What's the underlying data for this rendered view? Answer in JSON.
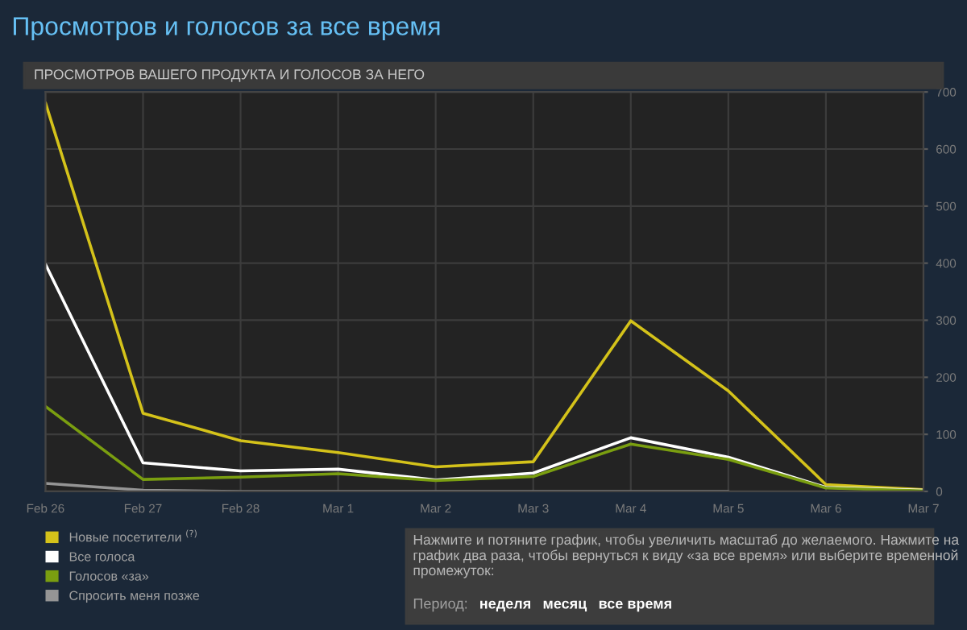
{
  "chart_data": {
    "type": "line",
    "title": "Просмотров и голосов за все время",
    "subtitle": "ПРОСМОТРОВ ВАШЕГО ПРОДУКТА И ГОЛОСОВ ЗА НЕГО",
    "categories": [
      "Feb 26",
      "Feb 27",
      "Feb 28",
      "Mar 1",
      "Mar 2",
      "Mar 3",
      "Mar 4",
      "Mar 5",
      "Mar 6",
      "Mar 7"
    ],
    "series": [
      {
        "name": "Новые посетители $^{(?)}$",
        "color": "#d4c21a",
        "values": [
          681,
          137,
          89,
          68,
          43,
          52,
          299,
          176,
          12,
          3
        ]
      },
      {
        "name": "Все голоса",
        "color": "#ffffff",
        "values": [
          398,
          50,
          36,
          39,
          20,
          32,
          94,
          60,
          7,
          2
        ]
      },
      {
        "name": "Голосов «за»",
        "color": "#7a9e10",
        "values": [
          149,
          21,
          25,
          31,
          19,
          26,
          83,
          56,
          6,
          1
        ]
      },
      {
        "name": "Спросить меня позже",
        "color": "#959595",
        "values": [
          14,
          2,
          0,
          0,
          0,
          0,
          0,
          0,
          null,
          null
        ]
      }
    ],
    "ylim": [
      0,
      700
    ],
    "yticks": [
      0,
      100,
      200,
      300,
      400,
      500,
      600,
      700
    ],
    "grid": true,
    "legend": "bottom left",
    "marker": "none",
    "line_style": "solid",
    "annotations": [
      "Нажмите и потяните график, чтобы увеличить масштаб до желаемого. Нажмите на график два раза, чтобы вернуться к виду «за все время» или выберите временной промежуток:",
      "Период:",
      "неделя",
      "месяц",
      "все время"
    ]
  }
}
